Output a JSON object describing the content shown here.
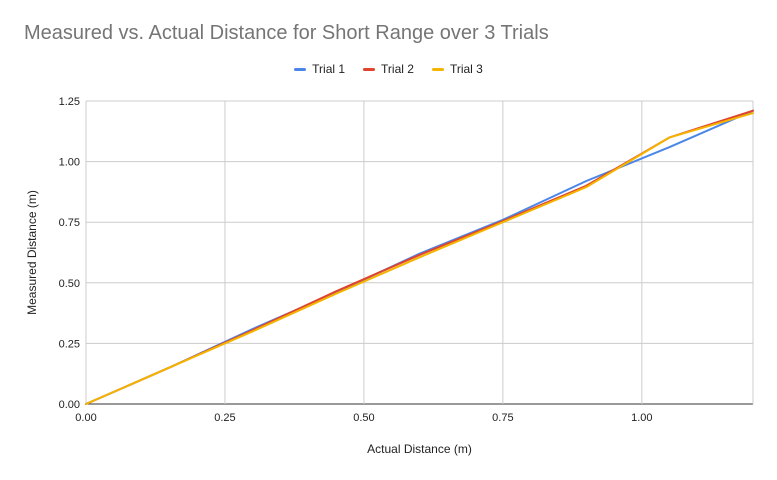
{
  "chart_data": {
    "type": "line",
    "title": "Measured vs. Actual Distance for Short Range over 3 Trials",
    "xlabel": "Actual Distance (m)",
    "ylabel": "Measured Distance (m)",
    "xlim": [
      0,
      1.2
    ],
    "ylim": [
      0,
      1.25
    ],
    "xticks": [
      "0.00",
      "0.25",
      "0.50",
      "0.75",
      "1.00"
    ],
    "yticks": [
      "0.00",
      "0.25",
      "0.50",
      "0.75",
      "1.00",
      "1.25"
    ],
    "xtick_values": [
      0,
      0.25,
      0.5,
      0.75,
      1.0
    ],
    "ytick_values": [
      0,
      0.25,
      0.5,
      0.75,
      1.0,
      1.25
    ],
    "grid": true,
    "legend_position": "top-center",
    "series": [
      {
        "name": "Trial 1",
        "color": "#4a86e8",
        "points": [
          [
            0,
            0
          ],
          [
            0.15,
            0.15
          ],
          [
            0.3,
            0.31
          ],
          [
            0.45,
            0.46
          ],
          [
            0.6,
            0.62
          ],
          [
            0.75,
            0.76
          ],
          [
            0.9,
            0.92
          ],
          [
            1.05,
            1.06
          ],
          [
            1.2,
            1.21
          ]
        ]
      },
      {
        "name": "Trial 2",
        "color": "#e0442f",
        "points": [
          [
            0,
            0
          ],
          [
            0.15,
            0.15
          ],
          [
            0.3,
            0.305
          ],
          [
            0.45,
            0.465
          ],
          [
            0.6,
            0.615
          ],
          [
            0.75,
            0.755
          ],
          [
            0.9,
            0.9
          ],
          [
            1.05,
            1.1
          ],
          [
            1.2,
            1.21
          ]
        ]
      },
      {
        "name": "Trial 3",
        "color": "#f4b400",
        "points": [
          [
            0,
            0
          ],
          [
            0.15,
            0.15
          ],
          [
            0.3,
            0.3
          ],
          [
            0.45,
            0.455
          ],
          [
            0.6,
            0.605
          ],
          [
            0.75,
            0.75
          ],
          [
            0.9,
            0.895
          ],
          [
            1.05,
            1.1
          ],
          [
            1.2,
            1.2
          ]
        ]
      }
    ]
  }
}
